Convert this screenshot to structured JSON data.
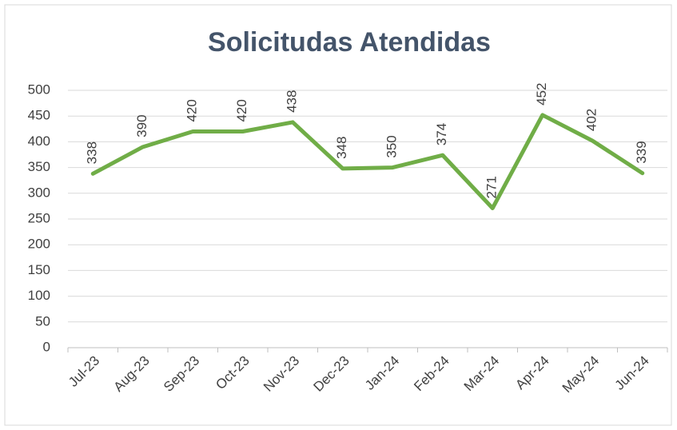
{
  "chart_data": {
    "type": "line",
    "title": "Solicitudas Atendidas",
    "categories": [
      "Jul-23",
      "Aug-23",
      "Sep-23",
      "Oct-23",
      "Nov-23",
      "Dec-23",
      "Jan-24",
      "Feb-24",
      "Mar-24",
      "Apr-24",
      "May-24",
      "Jun-24"
    ],
    "values": [
      338,
      390,
      420,
      420,
      438,
      348,
      350,
      374,
      271,
      452,
      402,
      339
    ],
    "color": "#70ad47",
    "ylim": [
      0,
      500
    ],
    "yticks": [
      0,
      50,
      100,
      150,
      200,
      250,
      300,
      350,
      400,
      450,
      500
    ],
    "grid": true
  }
}
